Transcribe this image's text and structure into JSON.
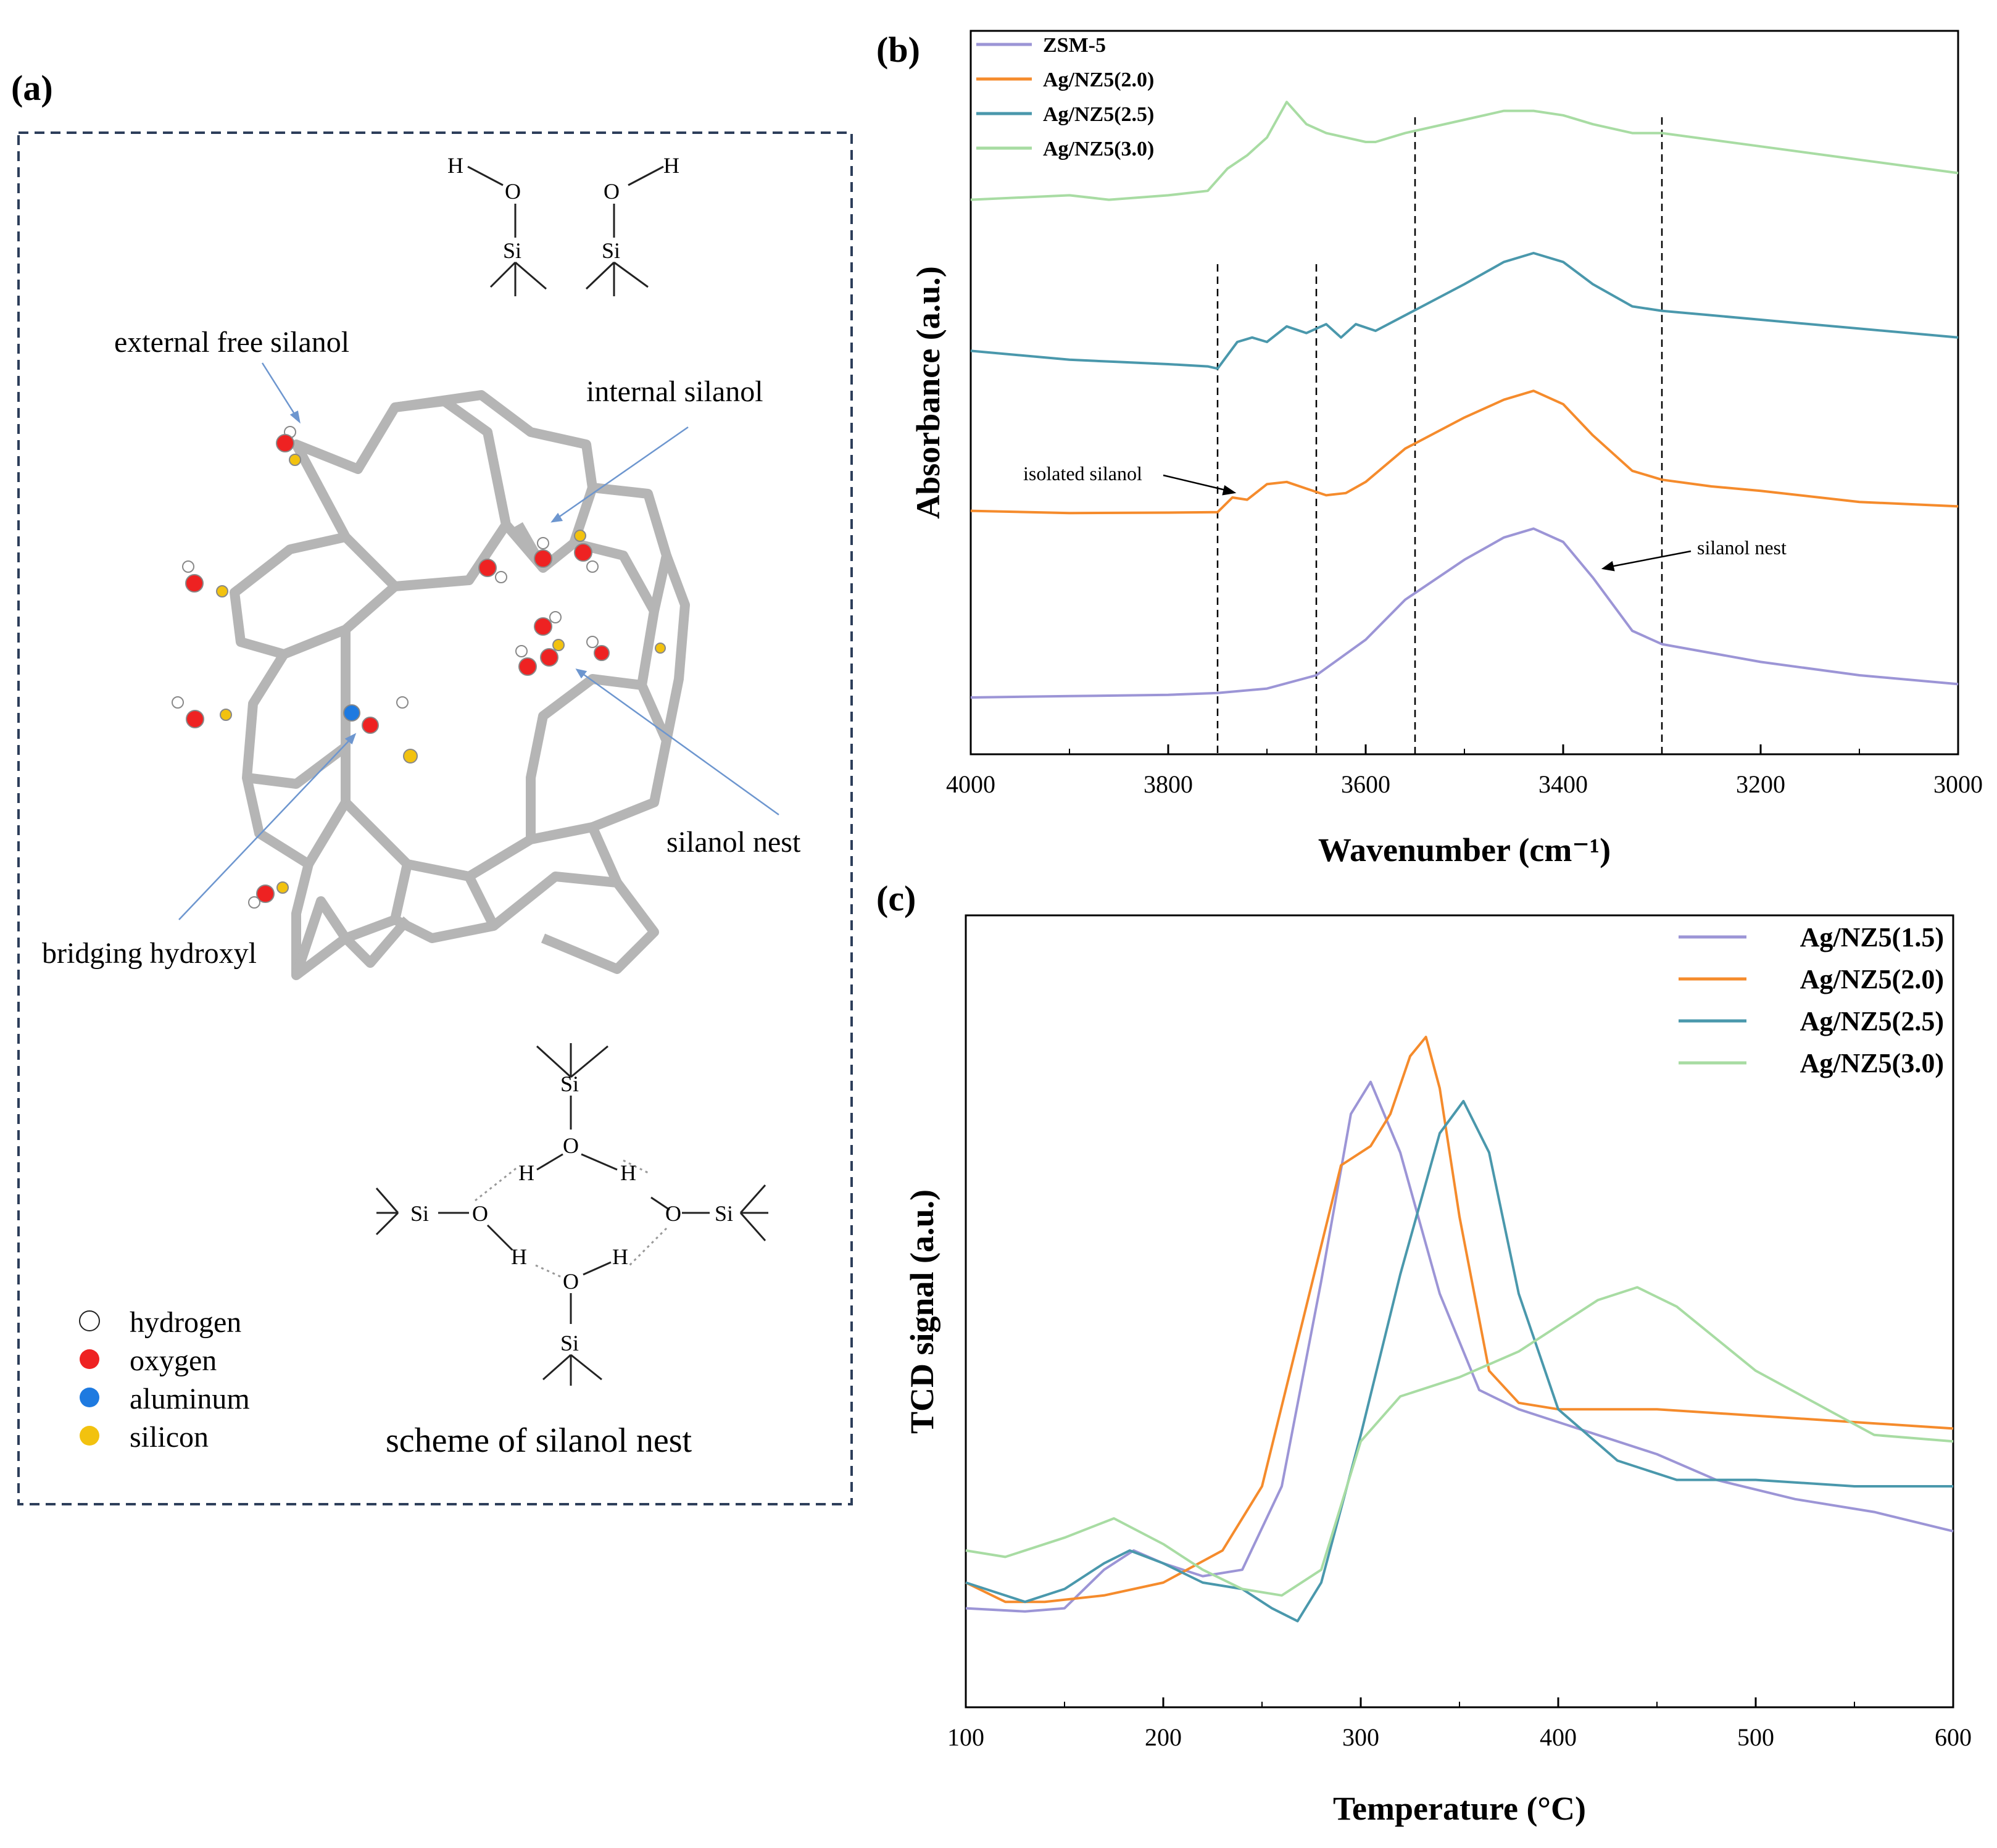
{
  "panels": {
    "a": {
      "label": "(a)",
      "annotations": {
        "external": "external free silanol",
        "internal": "internal silanol",
        "nest": "silanol nest",
        "bridging": "bridging hydroxyl",
        "scheme": "scheme of silanol nest"
      },
      "atoms": {
        "H": "H",
        "O": "O",
        "Si": "Si"
      },
      "legend": [
        {
          "name": "hydrogen",
          "color": "#ffffff"
        },
        {
          "name": "oxygen",
          "color": "#ee2222"
        },
        {
          "name": "aluminum",
          "color": "#1e7ae0"
        },
        {
          "name": "silicon",
          "color": "#f2c20f"
        }
      ]
    },
    "b": {
      "label": "(b)",
      "isolated": "isolated silanol",
      "nest": "silanol nest"
    },
    "c": {
      "label": "(c)"
    }
  },
  "colors": {
    "purple": "#9c95d6",
    "orange": "#f58b2c",
    "teal": "#4a98ac",
    "green": "#a8dca3"
  },
  "chart_data": [
    {
      "type": "line",
      "title": "",
      "xlabel": "Wavenumber (cm⁻¹)",
      "ylabel": "Absorbance (a.u.)",
      "xlim": [
        4000,
        3000
      ],
      "xticks": [
        "4000",
        "3800",
        "3600",
        "3400",
        "3200",
        "3000"
      ],
      "vlines": [
        3750,
        3650,
        3550,
        3300
      ],
      "series": [
        {
          "name": "ZSM-5",
          "color": "#9c95d6",
          "offset": 0.0,
          "x": [
            4000,
            3900,
            3800,
            3750,
            3700,
            3650,
            3600,
            3560,
            3500,
            3460,
            3430,
            3400,
            3370,
            3330,
            3300,
            3250,
            3200,
            3100,
            3000
          ],
          "y": [
            0.0,
            0.003,
            0.006,
            0.01,
            0.02,
            0.05,
            0.13,
            0.22,
            0.31,
            0.36,
            0.38,
            0.35,
            0.27,
            0.15,
            0.12,
            0.1,
            0.08,
            0.05,
            0.03
          ]
        },
        {
          "name": "Ag/NZ5(2.0)",
          "color": "#f58b2c",
          "offset": 0.42,
          "x": [
            4000,
            3900,
            3800,
            3750,
            3735,
            3720,
            3700,
            3680,
            3660,
            3640,
            3620,
            3600,
            3560,
            3500,
            3460,
            3430,
            3400,
            3370,
            3330,
            3300,
            3250,
            3200,
            3100,
            3000
          ],
          "y": [
            0.0,
            -0.005,
            -0.004,
            -0.003,
            0.03,
            0.025,
            0.06,
            0.065,
            0.05,
            0.035,
            0.04,
            0.065,
            0.14,
            0.21,
            0.25,
            0.27,
            0.24,
            0.17,
            0.09,
            0.07,
            0.055,
            0.045,
            0.02,
            0.01
          ]
        },
        {
          "name": "Ag/NZ5(2.5)",
          "color": "#4a98ac",
          "offset": 0.78,
          "x": [
            4000,
            3900,
            3850,
            3800,
            3760,
            3750,
            3740,
            3730,
            3715,
            3700,
            3680,
            3660,
            3640,
            3625,
            3610,
            3590,
            3560,
            3500,
            3460,
            3430,
            3400,
            3370,
            3330,
            3300,
            3250,
            3200,
            3100,
            3000
          ],
          "y": [
            0.0,
            -0.02,
            -0.025,
            -0.03,
            -0.035,
            -0.04,
            -0.01,
            0.02,
            0.03,
            0.02,
            0.055,
            0.04,
            0.06,
            0.03,
            0.06,
            0.045,
            0.08,
            0.15,
            0.2,
            0.22,
            0.2,
            0.15,
            0.1,
            0.09,
            0.08,
            0.07,
            0.05,
            0.03
          ]
        },
        {
          "name": "Ag/NZ5(3.0)",
          "color": "#a8dca3",
          "offset": 1.12,
          "x": [
            4000,
            3900,
            3860,
            3800,
            3760,
            3740,
            3720,
            3700,
            3680,
            3660,
            3640,
            3620,
            3600,
            3590,
            3560,
            3500,
            3460,
            3430,
            3400,
            3370,
            3330,
            3300,
            3200,
            3100,
            3000
          ],
          "y": [
            0.0,
            0.01,
            0.0,
            0.01,
            0.02,
            0.07,
            0.1,
            0.14,
            0.22,
            0.17,
            0.15,
            0.14,
            0.13,
            0.13,
            0.15,
            0.18,
            0.2,
            0.2,
            0.19,
            0.17,
            0.15,
            0.15,
            0.12,
            0.09,
            0.06
          ]
        }
      ]
    },
    {
      "type": "line",
      "title": "",
      "xlabel": "Temperature (°C)",
      "ylabel": "TCD signal (a.u.)",
      "xlim": [
        100,
        600
      ],
      "xticks": [
        "100",
        "200",
        "300",
        "400",
        "500",
        "600"
      ],
      "series": [
        {
          "name": "Ag/NZ5(1.5)",
          "color": "#9c95d6",
          "x": [
            100,
            130,
            150,
            170,
            185,
            200,
            220,
            240,
            260,
            280,
            295,
            305,
            320,
            340,
            360,
            380,
            400,
            420,
            450,
            480,
            520,
            560,
            600
          ],
          "y": [
            0.11,
            0.105,
            0.11,
            0.17,
            0.2,
            0.18,
            0.16,
            0.17,
            0.3,
            0.62,
            0.88,
            0.93,
            0.82,
            0.6,
            0.45,
            0.42,
            0.4,
            0.38,
            0.35,
            0.31,
            0.28,
            0.26,
            0.23
          ]
        },
        {
          "name": "Ag/NZ5(2.0)",
          "color": "#f58b2c",
          "x": [
            100,
            120,
            140,
            170,
            200,
            230,
            250,
            270,
            290,
            305,
            315,
            325,
            333,
            340,
            350,
            365,
            380,
            400,
            450,
            500,
            550,
            600
          ],
          "y": [
            0.15,
            0.12,
            0.12,
            0.13,
            0.15,
            0.2,
            0.3,
            0.55,
            0.8,
            0.83,
            0.88,
            0.97,
            1.0,
            0.92,
            0.72,
            0.48,
            0.43,
            0.42,
            0.42,
            0.41,
            0.4,
            0.39
          ]
        },
        {
          "name": "Ag/NZ5(2.5)",
          "color": "#4a98ac",
          "x": [
            100,
            130,
            150,
            170,
            183,
            200,
            220,
            240,
            255,
            268,
            280,
            300,
            320,
            340,
            352,
            365,
            380,
            400,
            430,
            460,
            500,
            550,
            600
          ],
          "y": [
            0.15,
            0.12,
            0.14,
            0.18,
            0.2,
            0.18,
            0.15,
            0.14,
            0.11,
            0.09,
            0.15,
            0.38,
            0.63,
            0.85,
            0.9,
            0.82,
            0.6,
            0.42,
            0.34,
            0.31,
            0.31,
            0.3,
            0.3
          ]
        },
        {
          "name": "Ag/NZ5(3.0)",
          "color": "#a8dca3",
          "x": [
            100,
            120,
            150,
            175,
            200,
            220,
            240,
            260,
            280,
            300,
            320,
            350,
            380,
            400,
            420,
            440,
            460,
            480,
            500,
            530,
            560,
            600
          ],
          "y": [
            0.2,
            0.19,
            0.22,
            0.25,
            0.21,
            0.17,
            0.14,
            0.13,
            0.17,
            0.37,
            0.44,
            0.47,
            0.51,
            0.55,
            0.59,
            0.61,
            0.58,
            0.53,
            0.48,
            0.43,
            0.38,
            0.37
          ]
        }
      ]
    }
  ]
}
